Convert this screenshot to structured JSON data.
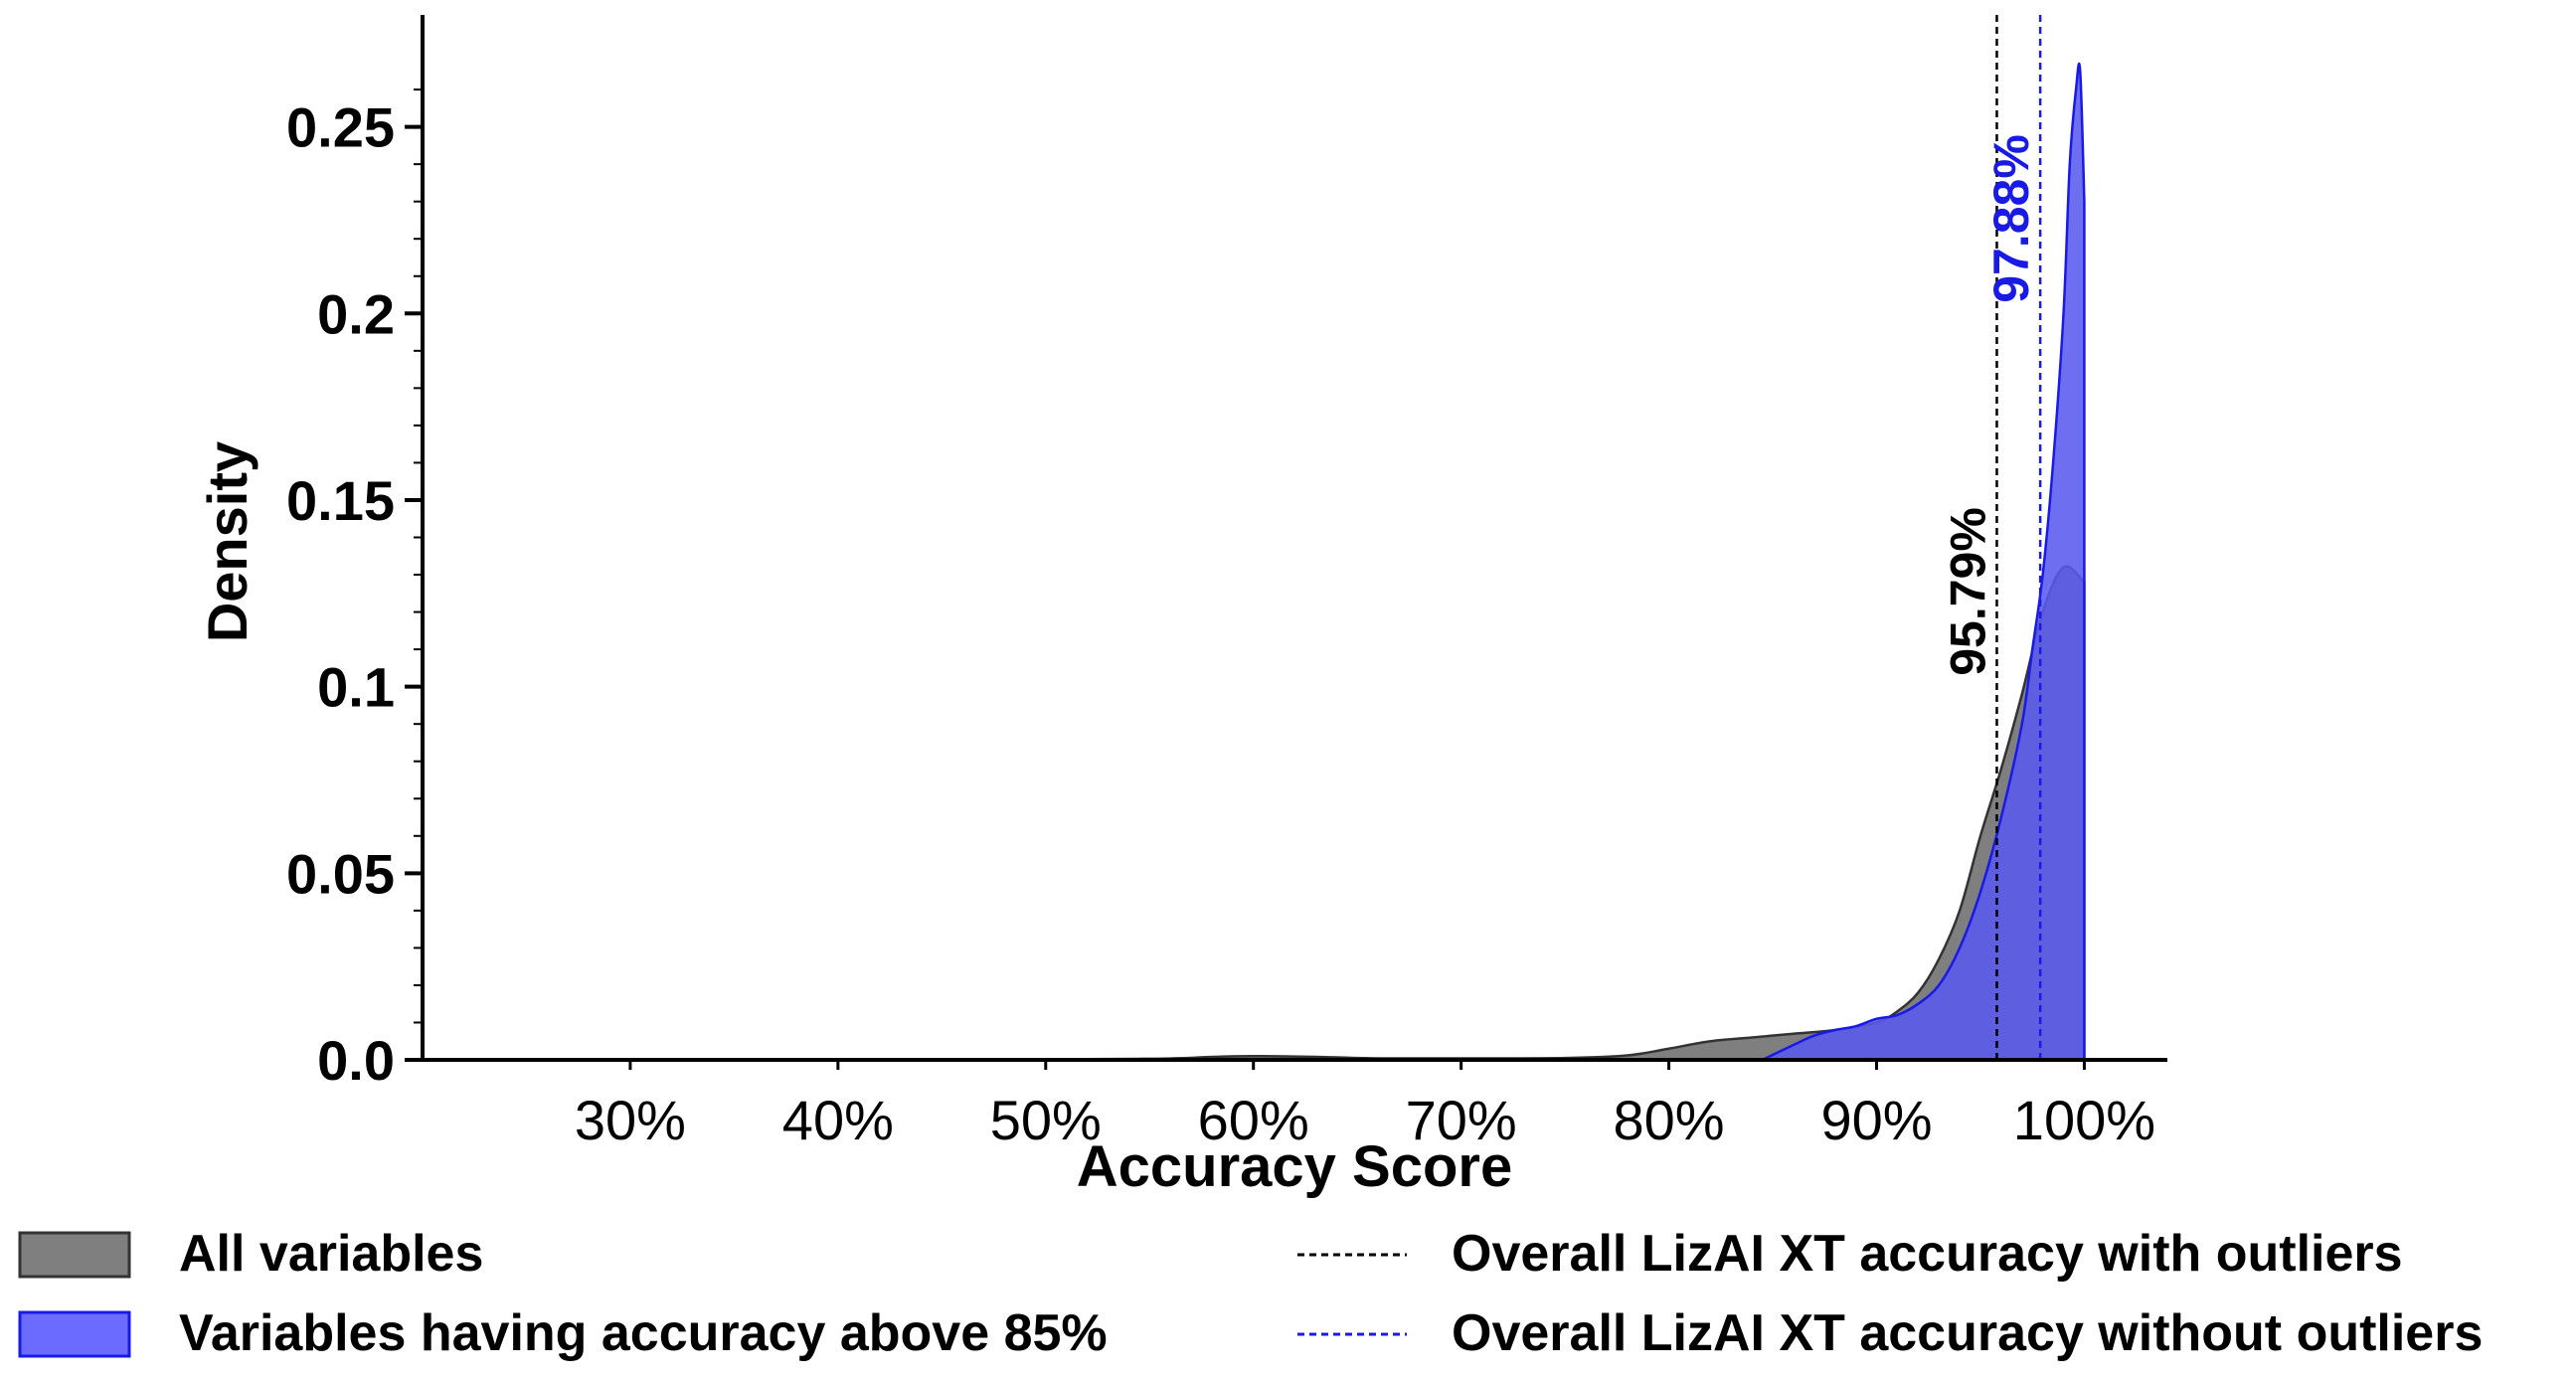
{
  "chart_data": {
    "type": "area",
    "title": "",
    "xlabel": "Accuracy Score",
    "ylabel": "Density",
    "xlim": [
      20,
      104
    ],
    "ylim": [
      0,
      0.28
    ],
    "x_ticks": [
      30,
      40,
      50,
      60,
      70,
      80,
      90,
      100
    ],
    "x_tick_labels": [
      "30%",
      "40%",
      "50%",
      "60%",
      "70%",
      "80%",
      "90%",
      "100%"
    ],
    "y_ticks": [
      0.0,
      0.05,
      0.1,
      0.15,
      0.2,
      0.25
    ],
    "y_tick_labels": [
      "0.0",
      "0.05",
      "0.1",
      "0.15",
      "0.2",
      "0.25"
    ],
    "series": [
      {
        "name": "All variables",
        "fill": "#7f7f7f",
        "stroke": "#333333",
        "x": [
          20,
          45,
          55,
          58,
          60,
          63,
          66,
          70,
          75,
          78,
          80,
          82,
          84,
          86,
          88,
          90,
          91,
          92,
          93,
          94,
          95,
          96,
          97,
          98,
          99,
          100
        ],
        "y": [
          0.0,
          0.0,
          0.0003,
          0.0008,
          0.001,
          0.0008,
          0.0004,
          0.0004,
          0.0005,
          0.0012,
          0.003,
          0.005,
          0.006,
          0.007,
          0.008,
          0.01,
          0.013,
          0.018,
          0.027,
          0.04,
          0.06,
          0.078,
          0.098,
          0.12,
          0.132,
          0.128
        ]
      },
      {
        "name": "Variables having accuracy above 85%",
        "fill": "#5a5aee",
        "stroke": "#1a1ae6",
        "x": [
          84.5,
          86,
          87,
          88,
          89,
          90,
          91,
          92,
          93,
          94,
          95,
          96,
          97,
          97.5,
          98,
          98.5,
          99,
          99.3,
          99.6,
          99.8,
          100
        ],
        "y": [
          0.0,
          0.004,
          0.0065,
          0.008,
          0.009,
          0.011,
          0.012,
          0.015,
          0.02,
          0.03,
          0.045,
          0.065,
          0.09,
          0.11,
          0.13,
          0.16,
          0.2,
          0.24,
          0.26,
          0.265,
          0.23
        ]
      }
    ],
    "reference_lines": [
      {
        "name": "Overall LizAI XT accuracy with outliers",
        "x": 95.79,
        "label": "95.79%",
        "color": "#000000"
      },
      {
        "name": "Overall LizAI XT accuracy without outliers",
        "x": 97.88,
        "label": "97.88%",
        "color": "#1a1ae6"
      }
    ],
    "legend": {
      "placement": "bottom",
      "entries": [
        {
          "label": "All variables",
          "kind": "patch",
          "color": "#7f7f7f",
          "edge": "#333333"
        },
        {
          "label": "Variables having accuracy above 85%",
          "kind": "patch",
          "color": "#6b6bff",
          "edge": "#1a1ae6"
        },
        {
          "label": "Overall LizAI XT accuracy with outliers",
          "kind": "dashed-line",
          "color": "#000000"
        },
        {
          "label": "Overall LizAI XT accuracy without outliers",
          "kind": "dashed-line",
          "color": "#1a1ae6"
        }
      ]
    }
  }
}
